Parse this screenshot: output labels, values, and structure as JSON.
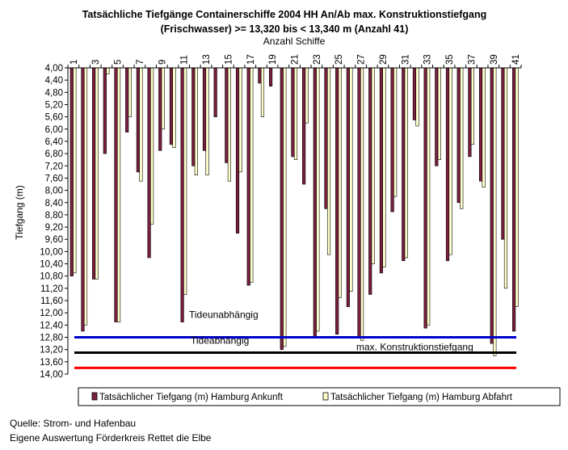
{
  "chart_data": {
    "type": "bar",
    "title": "Tatsächliche Tiefgänge Containerschiffe 2004 HH An/Ab max. Konstruktionstiefgang",
    "subtitle": "(Frischwasser) >= 13,320 bis < 13,340 m (Anzahl 41)",
    "xlabel": "Anzahl Schiffe",
    "ylabel": "Tiefgang (m)",
    "ylim": [
      4.0,
      14.0
    ],
    "y_reversed": true,
    "y_tick_step": 0.4,
    "categories": [
      "1",
      "2",
      "3",
      "4",
      "5",
      "6",
      "7",
      "8",
      "9",
      "10",
      "11",
      "12",
      "13",
      "14",
      "15",
      "16",
      "17",
      "18",
      "19",
      "20",
      "21",
      "22",
      "23",
      "24",
      "25",
      "26",
      "27",
      "28",
      "29",
      "30",
      "31",
      "32",
      "33",
      "34",
      "35",
      "36",
      "37",
      "38",
      "39",
      "40",
      "41"
    ],
    "x_tick_labels": [
      "1",
      "3",
      "5",
      "7",
      "9",
      "11",
      "13",
      "15",
      "17",
      "19",
      "21",
      "23",
      "25",
      "27",
      "29",
      "31",
      "33",
      "35",
      "37",
      "39",
      "41"
    ],
    "series": [
      {
        "name": "Tatsächlicher Tiefgang (m) Hamburg Ankunft",
        "color": "#7a1f3d",
        "values": [
          10.8,
          12.6,
          10.9,
          6.8,
          12.3,
          6.1,
          7.4,
          10.2,
          6.7,
          6.5,
          12.3,
          7.2,
          6.7,
          5.6,
          7.1,
          9.4,
          11.1,
          4.5,
          4.6,
          13.2,
          6.9,
          7.8,
          12.8,
          8.6,
          12.7,
          11.8,
          12.8,
          11.4,
          10.7,
          8.7,
          10.3,
          5.7,
          12.5,
          7.2,
          10.3,
          8.4,
          6.9,
          7.7,
          13.0,
          9.6,
          12.6
        ]
      },
      {
        "name": "Tatsächlicher Tiefgang (m) Hamburg Abfahrt",
        "color": "#ffffcc",
        "values": [
          10.7,
          12.4,
          10.9,
          4.2,
          12.3,
          5.6,
          7.7,
          9.1,
          6.0,
          6.6,
          11.4,
          7.5,
          7.5,
          4.0,
          7.7,
          7.4,
          11.0,
          5.6,
          4.0,
          13.1,
          7.0,
          5.8,
          12.6,
          10.1,
          11.5,
          11.3,
          12.9,
          10.4,
          10.5,
          8.2,
          10.2,
          5.9,
          12.4,
          7.0,
          10.1,
          8.6,
          6.5,
          7.9,
          13.4,
          11.2,
          11.8
        ]
      }
    ],
    "reference_lines": [
      {
        "label": "Tideunabhängig",
        "value": 12.8,
        "color": "#0000cc"
      },
      {
        "label": "Tideabhängig",
        "value": 12.8,
        "color": "#0000cc"
      },
      {
        "label": "max. Konstruktionstiefgang",
        "value": 13.3,
        "color": "#000000"
      },
      {
        "label": "",
        "value": 13.8,
        "color": "#ff0000"
      }
    ],
    "grid": false,
    "legend_position": "bottom"
  },
  "source_lines": [
    "Quelle: Strom- und Hafenbau",
    "Eigene Auswertung Förderkreis Rettet die Elbe"
  ]
}
